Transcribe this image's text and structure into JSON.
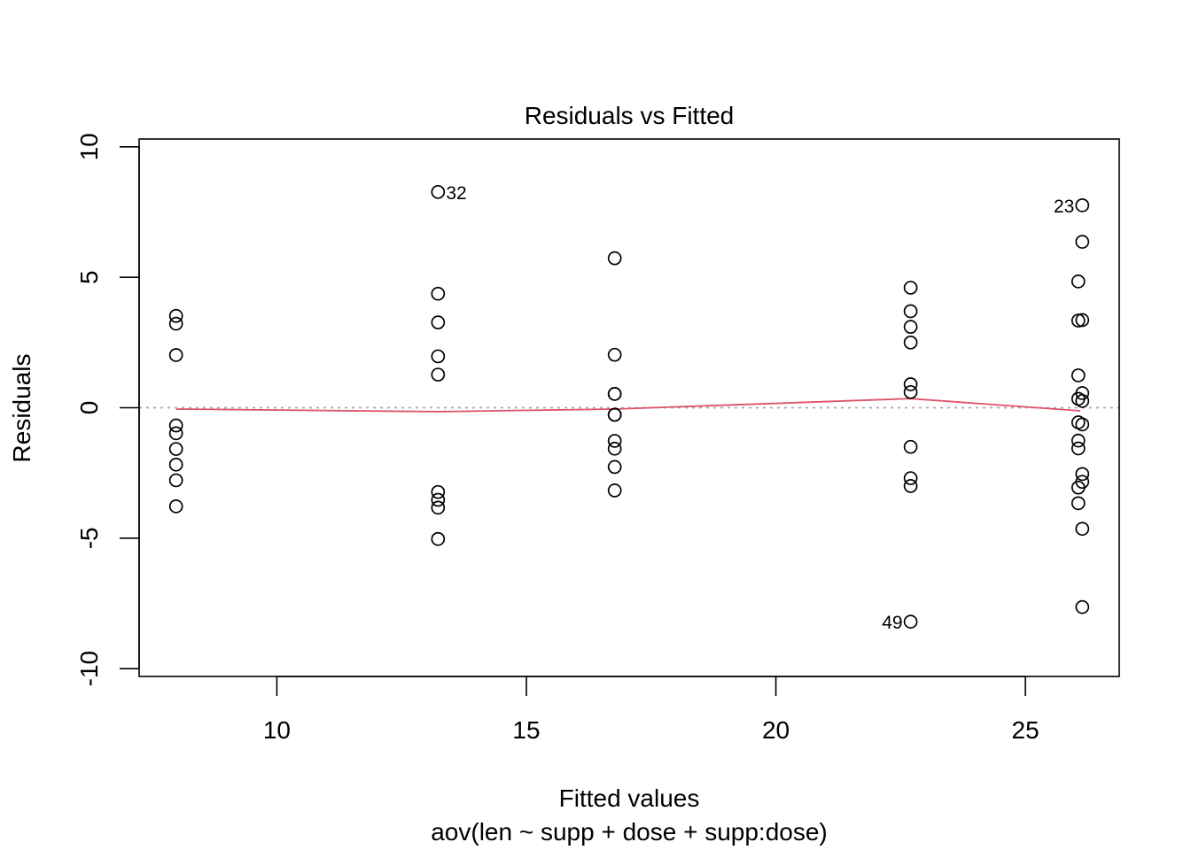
{
  "chart_data": {
    "type": "scatter",
    "title": "Residuals vs Fitted",
    "xlabel": "Fitted values",
    "sublabel": "aov(len ~ supp + dose + supp:dose)",
    "ylabel": "Residuals",
    "xlim": [
      7.24,
      26.88
    ],
    "ylim": [
      -10.3,
      10.3
    ],
    "xticks": [
      10,
      15,
      20,
      25
    ],
    "yticks": [
      -10,
      -5,
      0,
      5,
      10
    ],
    "xtick_labels": [
      "10",
      "15",
      "20",
      "25"
    ],
    "ytick_labels": [
      "-10",
      "-5",
      "0",
      "5",
      "10"
    ],
    "reference_line": {
      "y": 0,
      "color": "#a8a8a8",
      "style": "dotted"
    },
    "point_color": "#000000",
    "points": [
      {
        "x": 7.98,
        "y": 3.52
      },
      {
        "x": 7.98,
        "y": 3.22
      },
      {
        "x": 7.98,
        "y": 2.02
      },
      {
        "x": 7.98,
        "y": -0.68
      },
      {
        "x": 7.98,
        "y": -0.98
      },
      {
        "x": 7.98,
        "y": -1.58
      },
      {
        "x": 7.98,
        "y": -2.18
      },
      {
        "x": 7.98,
        "y": -2.78
      },
      {
        "x": 7.98,
        "y": -3.78
      },
      {
        "x": 13.23,
        "y": 8.27
      },
      {
        "x": 13.23,
        "y": 4.37
      },
      {
        "x": 13.23,
        "y": 3.27
      },
      {
        "x": 13.23,
        "y": 1.97
      },
      {
        "x": 13.23,
        "y": 1.27
      },
      {
        "x": 13.23,
        "y": -3.23
      },
      {
        "x": 13.23,
        "y": -3.53
      },
      {
        "x": 13.23,
        "y": -3.83
      },
      {
        "x": 13.23,
        "y": -5.03
      },
      {
        "x": 16.77,
        "y": 5.73
      },
      {
        "x": 16.77,
        "y": 2.03
      },
      {
        "x": 16.77,
        "y": 0.53
      },
      {
        "x": 16.77,
        "y": 0.53
      },
      {
        "x": 16.77,
        "y": -0.27
      },
      {
        "x": 16.77,
        "y": -0.27
      },
      {
        "x": 16.77,
        "y": -1.27
      },
      {
        "x": 16.77,
        "y": -1.57
      },
      {
        "x": 16.77,
        "y": -2.27
      },
      {
        "x": 16.77,
        "y": -3.17
      },
      {
        "x": 22.7,
        "y": 4.6
      },
      {
        "x": 22.7,
        "y": 3.7
      },
      {
        "x": 22.7,
        "y": 3.1
      },
      {
        "x": 22.7,
        "y": 2.5
      },
      {
        "x": 22.7,
        "y": 0.9
      },
      {
        "x": 22.7,
        "y": 0.6
      },
      {
        "x": 22.7,
        "y": -1.5
      },
      {
        "x": 22.7,
        "y": -2.7
      },
      {
        "x": 22.7,
        "y": -3.0
      },
      {
        "x": 22.7,
        "y": -8.2
      },
      {
        "x": 26.06,
        "y": 4.84
      },
      {
        "x": 26.06,
        "y": 3.34
      },
      {
        "x": 26.06,
        "y": 1.24
      },
      {
        "x": 26.06,
        "y": 0.34
      },
      {
        "x": 26.06,
        "y": -0.56
      },
      {
        "x": 26.06,
        "y": -1.26
      },
      {
        "x": 26.06,
        "y": -1.56
      },
      {
        "x": 26.06,
        "y": -3.06
      },
      {
        "x": 26.06,
        "y": -3.66
      },
      {
        "x": 26.14,
        "y": 7.76
      },
      {
        "x": 26.14,
        "y": 6.36
      },
      {
        "x": 26.14,
        "y": 3.36
      },
      {
        "x": 26.14,
        "y": 0.56
      },
      {
        "x": 26.14,
        "y": 0.26
      },
      {
        "x": 26.14,
        "y": -0.64
      },
      {
        "x": 26.14,
        "y": -2.54
      },
      {
        "x": 26.14,
        "y": -2.84
      },
      {
        "x": 26.14,
        "y": -4.64
      },
      {
        "x": 26.14,
        "y": -7.64
      }
    ],
    "annotations": [
      {
        "label": "32",
        "x": 13.23,
        "y": 8.27,
        "side": "right"
      },
      {
        "label": "23",
        "x": 26.14,
        "y": 7.76,
        "side": "left"
      },
      {
        "label": "49",
        "x": 22.7,
        "y": -8.2,
        "side": "left"
      }
    ],
    "smooth_line": {
      "color": "#df536b",
      "x": [
        7.98,
        13.23,
        16.77,
        22.7,
        26.1
      ],
      "y": [
        -0.05,
        -0.15,
        -0.05,
        0.35,
        -0.12
      ]
    }
  }
}
